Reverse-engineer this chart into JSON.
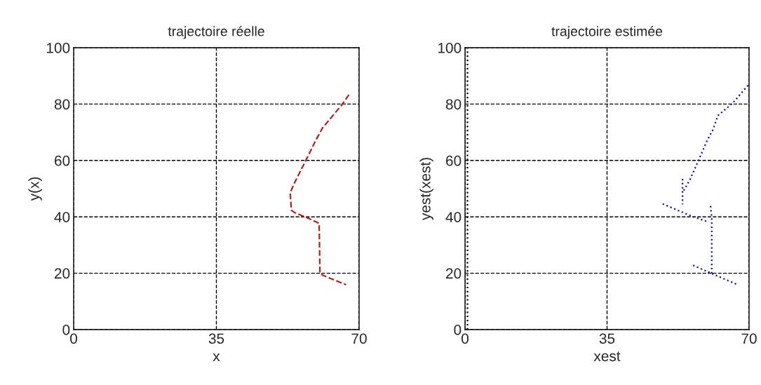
{
  "chart_data": [
    {
      "type": "line",
      "title": "trajectoire réelle",
      "xlabel": "x",
      "ylabel": "y(x)",
      "xlim": [
        0,
        70
      ],
      "ylim": [
        0,
        100
      ],
      "xticks": [
        0,
        35,
        70
      ],
      "yticks": [
        0,
        20,
        40,
        60,
        80,
        100
      ],
      "grid": true,
      "line_style": "dashed",
      "series": [
        {
          "color": "#b22222",
          "x": [
            67.5,
            65.7,
            61.1,
            59.4,
            57.1,
            54.2,
            53.1,
            53.4,
            54.2,
            57.7,
            60.2,
            60.4,
            61.4,
            66.8
          ],
          "values": [
            83.3,
            79.6,
            71.7,
            67.2,
            60.5,
            52.2,
            48.5,
            42.3,
            41.5,
            39.4,
            37.7,
            19.9,
            19.1,
            15.9
          ]
        }
      ]
    },
    {
      "type": "line",
      "title": "trajectoire estimée",
      "xlabel": "xest",
      "ylabel": "yest(xest)",
      "xlim": [
        0,
        70
      ],
      "ylim": [
        0,
        100
      ],
      "xticks": [
        0,
        35,
        70
      ],
      "yticks": [
        0,
        20,
        40,
        60,
        80,
        100
      ],
      "grid": true,
      "line_style": "dotted",
      "series": [
        {
          "color": "#000000",
          "x": [
            0.6,
            0.6
          ],
          "values": [
            0,
            100
          ]
        },
        {
          "color": "#1a1a9a",
          "x": [
            56.2,
            60.8,
            67.2,
            null,
            60.8,
            60.8,
            60.5,
            null,
            48.7,
            55.9,
            59.7,
            null,
            53.6,
            53.6,
            null,
            53.9,
            55.4,
            57.7,
            59.7,
            61.1,
            62.3,
            66.0,
            70.0
          ],
          "values": [
            22.8,
            19.9,
            15.9,
            null,
            19.9,
            39.8,
            44.1,
            null,
            44.6,
            40.2,
            38.3,
            null,
            53.5,
            44.4,
            null,
            49.3,
            53.1,
            60.5,
            67.2,
            70.9,
            75.9,
            80.4,
            87.1
          ]
        }
      ]
    }
  ]
}
